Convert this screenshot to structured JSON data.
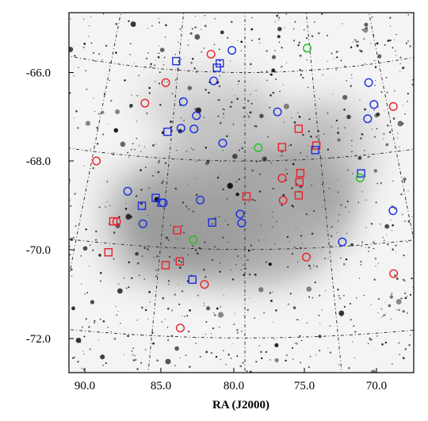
{
  "figure": {
    "xlabel": "RA (J2000)",
    "xticks": [
      "90.0",
      "85.0",
      "80.0",
      "75.0",
      "70.0"
    ],
    "yticks": [
      "-66.0",
      "-68.0",
      "-70.0",
      "-72.0"
    ],
    "colors": {
      "red": "#e8202a",
      "blue": "#1a2ee0",
      "green": "#1fc21f",
      "background": "#ffffff",
      "star": "#111111",
      "galaxy_glow": "#8c8c8c"
    }
  },
  "markers": [
    {
      "shape": "circle",
      "color": "red",
      "ra": 82.6,
      "dec": -65.6
    },
    {
      "shape": "circle",
      "color": "red",
      "ra": 85.8,
      "dec": -66.3
    },
    {
      "shape": "circle",
      "color": "red",
      "ra": 87.1,
      "dec": -66.8
    },
    {
      "shape": "circle",
      "color": "red",
      "ra": 69.6,
      "dec": -67.0
    },
    {
      "shape": "circle",
      "color": "red",
      "ra": 89.7,
      "dec": -68.2
    },
    {
      "shape": "circle",
      "color": "red",
      "ra": 77.6,
      "dec": -68.4
    },
    {
      "shape": "circle",
      "color": "red",
      "ra": 77.6,
      "dec": -68.9
    },
    {
      "shape": "circle",
      "color": "red",
      "ra": 87.8,
      "dec": -69.5
    },
    {
      "shape": "circle",
      "color": "red",
      "ra": 76.4,
      "dec": -70.2
    },
    {
      "shape": "circle",
      "color": "red",
      "ra": 82.3,
      "dec": -70.8
    },
    {
      "shape": "circle",
      "color": "red",
      "ra": 71.5,
      "dec": -70.7
    },
    {
      "shape": "circle",
      "color": "red",
      "ra": 83.5,
      "dec": -71.8
    },
    {
      "shape": "square",
      "color": "red",
      "ra": 76.3,
      "dec": -67.3
    },
    {
      "shape": "square",
      "color": "red",
      "ra": 77.5,
      "dec": -67.7
    },
    {
      "shape": "square",
      "color": "red",
      "ra": 75.2,
      "dec": -67.7
    },
    {
      "shape": "square",
      "color": "red",
      "ra": 76.4,
      "dec": -68.3
    },
    {
      "shape": "square",
      "color": "red",
      "ra": 76.5,
      "dec": -68.5
    },
    {
      "shape": "square",
      "color": "red",
      "ra": 79.9,
      "dec": -68.8
    },
    {
      "shape": "square",
      "color": "red",
      "ra": 76.6,
      "dec": -68.8
    },
    {
      "shape": "square",
      "color": "red",
      "ra": 88.0,
      "dec": -69.5
    },
    {
      "shape": "square",
      "color": "red",
      "ra": 84.1,
      "dec": -69.6
    },
    {
      "shape": "square",
      "color": "red",
      "ra": 88.0,
      "dec": -70.2
    },
    {
      "shape": "square",
      "color": "red",
      "ra": 83.8,
      "dec": -70.3
    },
    {
      "shape": "square",
      "color": "red",
      "ra": 84.6,
      "dec": -70.4
    },
    {
      "shape": "circle",
      "color": "blue",
      "ra": 81.0,
      "dec": -65.5
    },
    {
      "shape": "circle",
      "color": "blue",
      "ra": 82.3,
      "dec": -66.2
    },
    {
      "shape": "circle",
      "color": "blue",
      "ra": 71.0,
      "dec": -66.4
    },
    {
      "shape": "circle",
      "color": "blue",
      "ra": 84.4,
      "dec": -66.7
    },
    {
      "shape": "circle",
      "color": "blue",
      "ra": 70.9,
      "dec": -66.9
    },
    {
      "shape": "circle",
      "color": "blue",
      "ra": 77.7,
      "dec": -66.9
    },
    {
      "shape": "circle",
      "color": "blue",
      "ra": 83.4,
      "dec": -67.0
    },
    {
      "shape": "circle",
      "color": "blue",
      "ra": 71.5,
      "dec": -67.2
    },
    {
      "shape": "circle",
      "color": "blue",
      "ra": 84.4,
      "dec": -67.3
    },
    {
      "shape": "circle",
      "color": "blue",
      "ra": 83.5,
      "dec": -67.3
    },
    {
      "shape": "circle",
      "color": "blue",
      "ra": 81.5,
      "dec": -67.6
    },
    {
      "shape": "circle",
      "color": "blue",
      "ra": 87.4,
      "dec": -68.8
    },
    {
      "shape": "circle",
      "color": "blue",
      "ra": 82.8,
      "dec": -68.9
    },
    {
      "shape": "circle",
      "color": "blue",
      "ra": 85.1,
      "dec": -69.0
    },
    {
      "shape": "circle",
      "color": "blue",
      "ra": 80.3,
      "dec": -69.2
    },
    {
      "shape": "circle",
      "color": "blue",
      "ra": 70.9,
      "dec": -69.3
    },
    {
      "shape": "circle",
      "color": "blue",
      "ra": 80.2,
      "dec": -69.4
    },
    {
      "shape": "circle",
      "color": "blue",
      "ra": 86.2,
      "dec": -69.5
    },
    {
      "shape": "circle",
      "color": "blue",
      "ra": 74.2,
      "dec": -69.9
    },
    {
      "shape": "square",
      "color": "blue",
      "ra": 85.2,
      "dec": -65.8
    },
    {
      "shape": "square",
      "color": "blue",
      "ra": 81.9,
      "dec": -65.8
    },
    {
      "shape": "square",
      "color": "blue",
      "ra": 82.1,
      "dec": -65.9
    },
    {
      "shape": "square",
      "color": "blue",
      "ra": 85.3,
      "dec": -67.4
    },
    {
      "shape": "square",
      "color": "blue",
      "ra": 75.3,
      "dec": -67.8
    },
    {
      "shape": "square",
      "color": "blue",
      "ra": 72.5,
      "dec": -68.4
    },
    {
      "shape": "square",
      "color": "blue",
      "ra": 85.6,
      "dec": -68.9
    },
    {
      "shape": "square",
      "color": "blue",
      "ra": 85.2,
      "dec": -69.0
    },
    {
      "shape": "square",
      "color": "blue",
      "ra": 86.4,
      "dec": -69.1
    },
    {
      "shape": "square",
      "color": "blue",
      "ra": 82.0,
      "dec": -69.4
    },
    {
      "shape": "square",
      "color": "blue",
      "ra": 83.0,
      "dec": -70.7
    },
    {
      "shape": "circle",
      "color": "green",
      "ra": 75.2,
      "dec": -65.5
    },
    {
      "shape": "circle",
      "color": "green",
      "ra": 79.1,
      "dec": -67.7
    },
    {
      "shape": "circle",
      "color": "green",
      "ra": 72.6,
      "dec": -68.5
    },
    {
      "shape": "circle",
      "color": "green",
      "ra": 83.1,
      "dec": -69.8
    }
  ]
}
